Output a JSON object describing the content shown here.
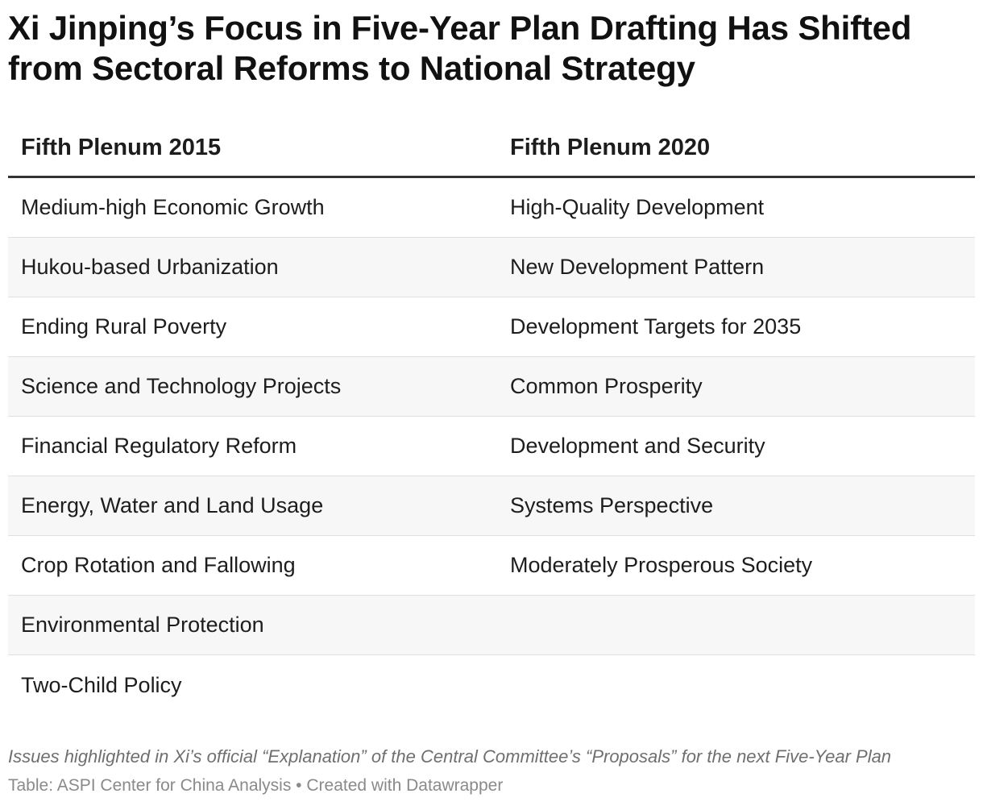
{
  "title": "Xi Jinping’s Focus in Five-Year Plan Drafting Has Shifted from Sectoral Reforms to National Strategy",
  "chart_data": {
    "type": "table",
    "columns": [
      "Fifth Plenum 2015",
      "Fifth Plenum 2020"
    ],
    "rows": [
      [
        "Medium-high Economic Growth",
        "High-Quality Development"
      ],
      [
        "Hukou-based Urbanization",
        "New Development Pattern"
      ],
      [
        "Ending Rural Poverty",
        "Development Targets for 2035"
      ],
      [
        "Science and Technology Projects",
        "Common Prosperity"
      ],
      [
        "Financial Regulatory Reform",
        "Development and Security"
      ],
      [
        "Energy, Water and Land Usage",
        "Systems Perspective"
      ],
      [
        "Crop Rotation and Fallowing",
        "Moderately Prosperous Society"
      ],
      [
        "Environmental Protection",
        ""
      ],
      [
        "Two-Child Policy",
        ""
      ]
    ]
  },
  "notes": "Issues highlighted in Xi’s official “Explanation” of the Central Committee’s “Proposals” for the next Five-Year Plan",
  "footer": "Table: ASPI Center for China Analysis • Created with Datawrapper"
}
